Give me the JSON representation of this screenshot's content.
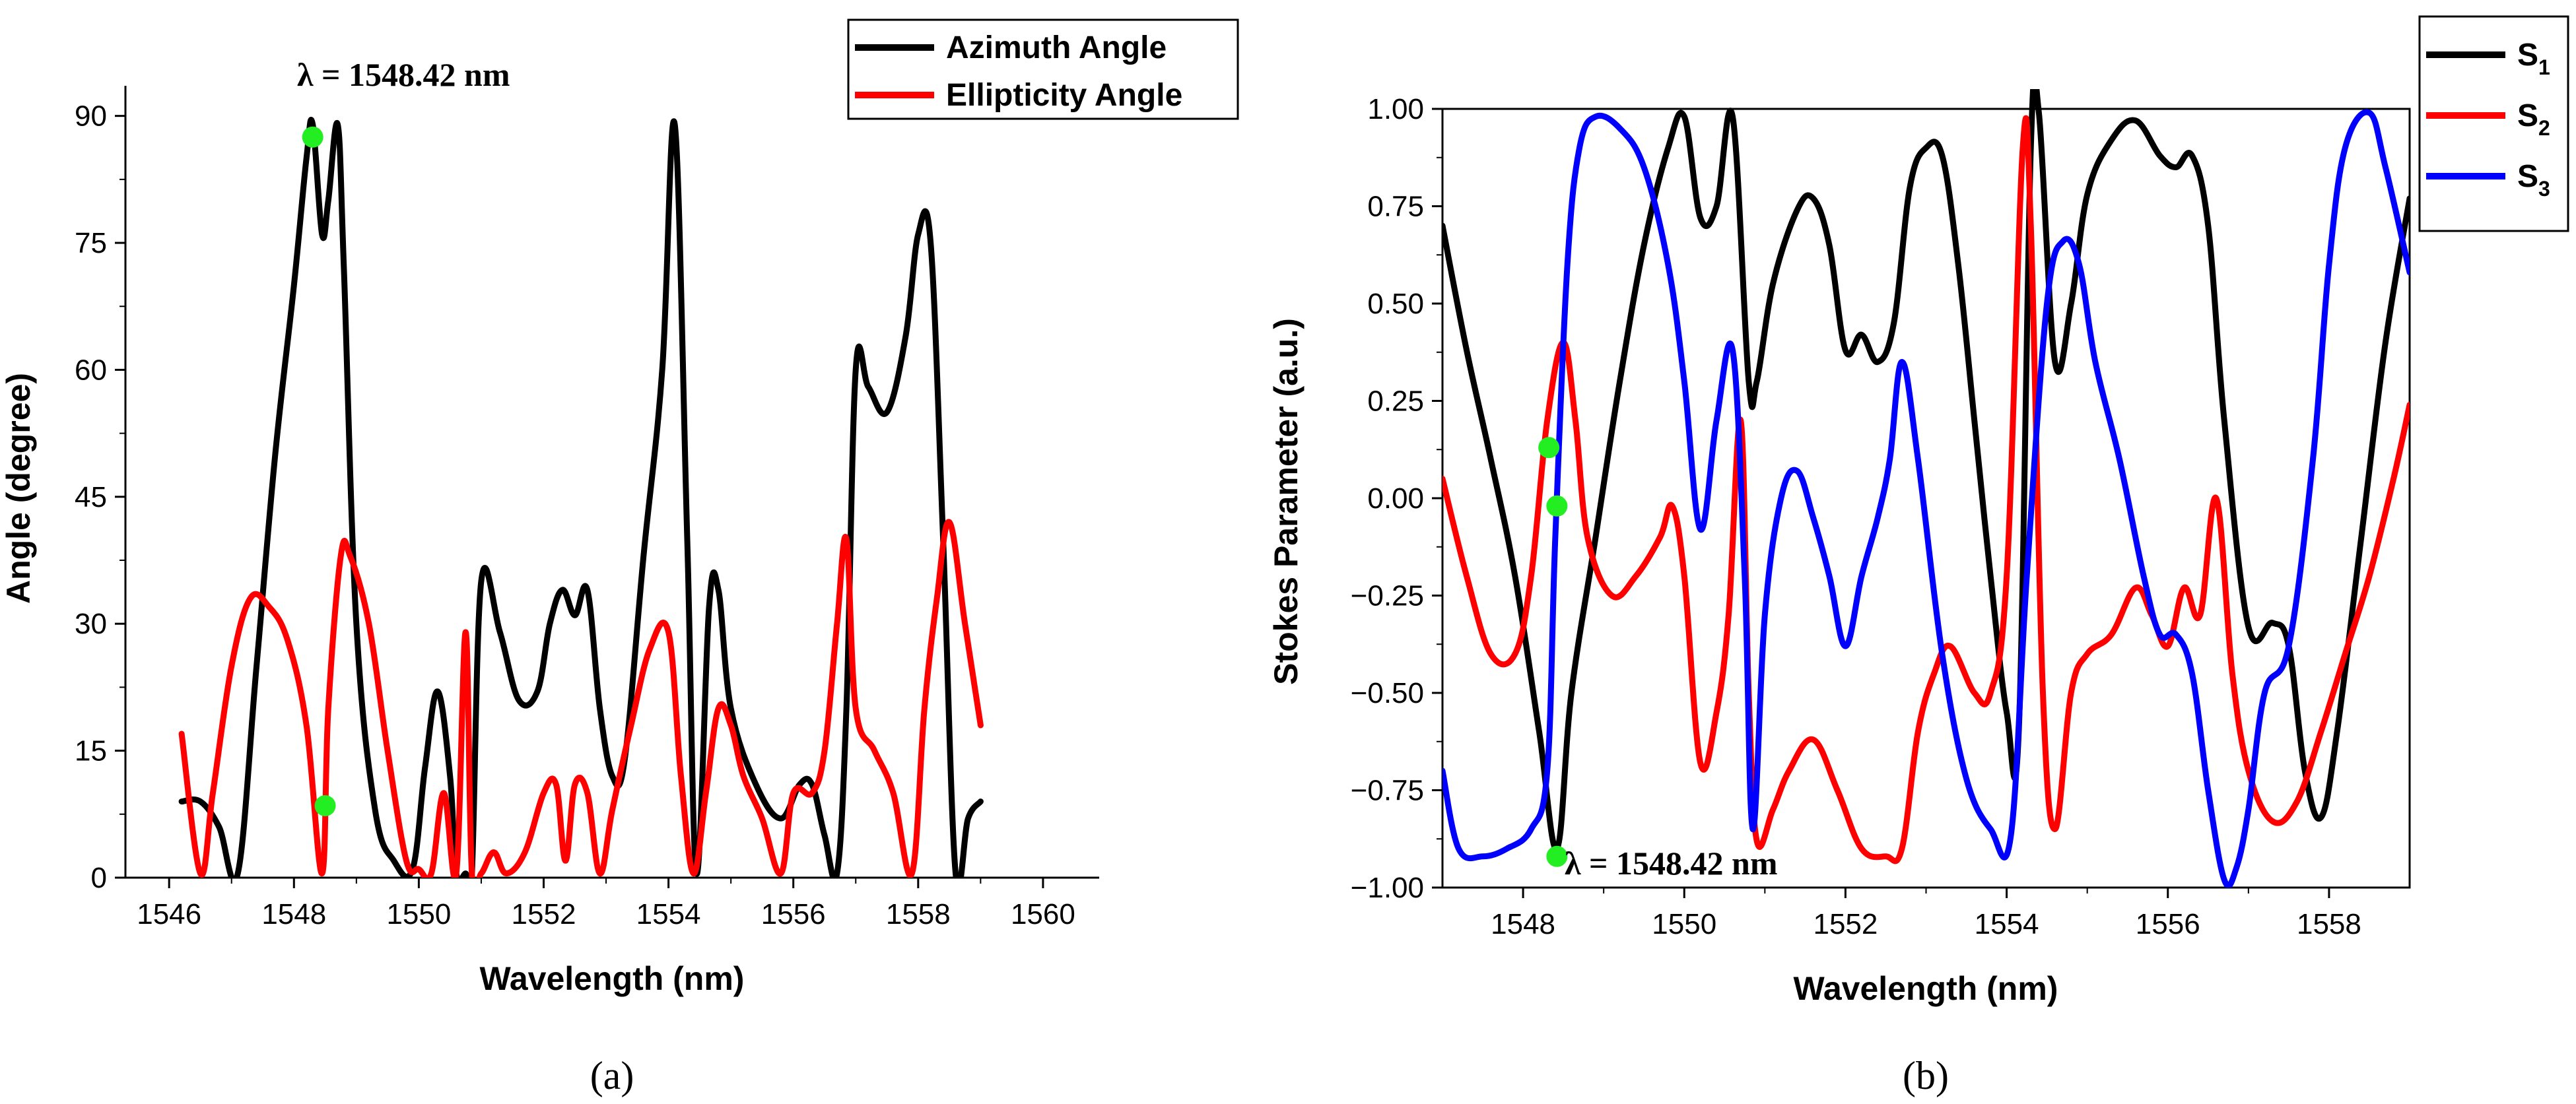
{
  "chart_data": [
    {
      "type": "line",
      "panel_label": "(a)",
      "title": "",
      "xlabel": "Wavelength (nm)",
      "ylabel": "Angle (degree)",
      "xlim": [
        1545.3,
        1560.9
      ],
      "ylim": [
        0,
        92
      ],
      "xticks": [
        1546,
        1548,
        1550,
        1552,
        1554,
        1556,
        1558,
        1560
      ],
      "yticks": [
        0,
        15,
        30,
        45,
        60,
        75,
        90
      ],
      "ytick_labels": [
        "0",
        "15",
        "30",
        "45",
        "60",
        "75",
        "90"
      ],
      "legend_position": "top-right",
      "annotation": {
        "text": "λ = 1548.42 nm",
        "x": 1548.42,
        "y": 90
      },
      "markers": [
        {
          "x": 1548.3,
          "y": 87.5
        },
        {
          "x": 1548.5,
          "y": 8.5
        }
      ],
      "series": [
        {
          "name": "Azimuth Angle",
          "color": "#000000",
          "x": [
            1546.2,
            1546.5,
            1546.8,
            1547.1,
            1547.4,
            1547.7,
            1548.0,
            1548.2,
            1548.3,
            1548.45,
            1548.55,
            1548.7,
            1548.8,
            1549.0,
            1549.3,
            1549.6,
            1549.9,
            1550.1,
            1550.3,
            1550.5,
            1550.6,
            1550.75,
            1550.85,
            1551.0,
            1551.3,
            1551.6,
            1551.9,
            1552.1,
            1552.3,
            1552.5,
            1552.7,
            1552.9,
            1553.1,
            1553.3,
            1553.6,
            1553.9,
            1554.1,
            1554.3,
            1554.45,
            1554.65,
            1554.8,
            1555.0,
            1555.4,
            1555.8,
            1556.1,
            1556.3,
            1556.5,
            1556.7,
            1556.85,
            1557.0,
            1557.2,
            1557.5,
            1557.8,
            1558.0,
            1558.2,
            1558.4,
            1558.6,
            1558.8,
            1559.0
          ],
          "y": [
            9,
            9,
            6,
            0.5,
            25,
            50,
            70,
            85,
            89,
            76,
            80,
            89,
            72,
            30,
            8,
            2,
            1,
            13,
            22,
            12,
            0.5,
            0.5,
            0.5,
            35,
            29,
            21,
            22,
            30,
            34,
            31,
            34,
            20,
            12,
            14,
            38,
            60,
            89,
            40,
            0.5,
            32,
            34,
            20,
            11,
            7,
            11,
            11,
            5,
            0.5,
            20,
            60,
            58,
            55,
            64,
            76,
            75,
            40,
            0.5,
            7,
            9
          ]
        },
        {
          "name": "Ellipticity Angle",
          "color": "#ff0000",
          "x": [
            1546.2,
            1546.5,
            1546.7,
            1547.0,
            1547.3,
            1547.6,
            1547.9,
            1548.2,
            1548.45,
            1548.55,
            1548.75,
            1548.9,
            1549.2,
            1549.5,
            1549.8,
            1550.0,
            1550.2,
            1550.4,
            1550.6,
            1550.75,
            1550.85,
            1551.0,
            1551.2,
            1551.4,
            1551.7,
            1552.0,
            1552.2,
            1552.35,
            1552.5,
            1552.7,
            1552.9,
            1553.1,
            1553.4,
            1553.7,
            1554.0,
            1554.2,
            1554.4,
            1554.6,
            1554.8,
            1555.0,
            1555.2,
            1555.5,
            1555.8,
            1556.0,
            1556.3,
            1556.5,
            1556.7,
            1556.85,
            1557.0,
            1557.3,
            1557.6,
            1557.9,
            1558.1,
            1558.3,
            1558.5,
            1558.75,
            1559.0
          ],
          "y": [
            17,
            0.5,
            10,
            25,
            33,
            32,
            28,
            18,
            0.5,
            20,
            38,
            38,
            30,
            15,
            2,
            1,
            0.5,
            10,
            0.5,
            29,
            0.5,
            0.5,
            3,
            0.5,
            3,
            10,
            11,
            2,
            11,
            10,
            0.5,
            8,
            18,
            27,
            29,
            12,
            0.5,
            10,
            20,
            18,
            12,
            7,
            0.5,
            10,
            10,
            15,
            30,
            40,
            20,
            15,
            10,
            0.5,
            20,
            33,
            42,
            30,
            18
          ]
        }
      ]
    },
    {
      "type": "line",
      "panel_label": "(b)",
      "title": "",
      "xlabel": "Wavelength (nm)",
      "ylabel": "Stokes Parameter (a.u.)",
      "xlim": [
        1547.0,
        1559.0
      ],
      "ylim": [
        -1.0,
        1.0
      ],
      "xticks": [
        1548,
        1550,
        1552,
        1554,
        1556,
        1558
      ],
      "yticks": [
        -1.0,
        -0.75,
        -0.5,
        -0.25,
        0.0,
        0.25,
        0.5,
        0.75,
        1.0
      ],
      "ytick_labels": [
        "−1.00",
        "−0.75",
        "−0.50",
        "−0.25",
        "0.00",
        "0.25",
        "0.50",
        "0.75",
        "1.00"
      ],
      "legend_position": "top-right",
      "annotation": {
        "text": "λ = 1548.42 nm",
        "x": 1548.42,
        "y": -0.92
      },
      "markers": [
        {
          "x": 1548.32,
          "y": 0.13
        },
        {
          "x": 1548.42,
          "y": -0.02
        },
        {
          "x": 1548.42,
          "y": -0.92
        }
      ],
      "series": [
        {
          "name": "S1",
          "color": "#000000",
          "x": [
            1547.0,
            1547.3,
            1547.6,
            1547.9,
            1548.2,
            1548.42,
            1548.6,
            1548.9,
            1549.2,
            1549.5,
            1549.8,
            1550.0,
            1550.2,
            1550.4,
            1550.6,
            1550.8,
            1550.9,
            1551.1,
            1551.4,
            1551.6,
            1551.8,
            1552.0,
            1552.2,
            1552.4,
            1552.6,
            1552.8,
            1553.0,
            1553.2,
            1553.4,
            1553.6,
            1553.8,
            1554.0,
            1554.15,
            1554.3,
            1554.4,
            1554.6,
            1554.8,
            1555.0,
            1555.3,
            1555.6,
            1555.9,
            1556.1,
            1556.3,
            1556.5,
            1556.7,
            1557.0,
            1557.3,
            1557.5,
            1557.7,
            1557.9,
            1558.1,
            1558.4,
            1558.7,
            1559.0
          ],
          "y": [
            0.7,
            0.38,
            0.1,
            -0.2,
            -0.6,
            -0.9,
            -0.5,
            -0.1,
            0.3,
            0.65,
            0.9,
            0.98,
            0.72,
            0.75,
            0.98,
            0.3,
            0.3,
            0.55,
            0.74,
            0.77,
            0.65,
            0.38,
            0.42,
            0.35,
            0.45,
            0.8,
            0.9,
            0.88,
            0.6,
            0.2,
            -0.2,
            -0.55,
            -0.6,
            0.9,
            0.99,
            0.35,
            0.5,
            0.78,
            0.92,
            0.97,
            0.88,
            0.85,
            0.88,
            0.7,
            0.2,
            -0.33,
            -0.32,
            -0.38,
            -0.7,
            -0.82,
            -0.6,
            -0.1,
            0.4,
            0.77
          ]
        },
        {
          "name": "S2",
          "color": "#ff0000",
          "x": [
            1547.0,
            1547.3,
            1547.6,
            1547.9,
            1548.1,
            1548.3,
            1548.5,
            1548.65,
            1548.8,
            1549.1,
            1549.4,
            1549.7,
            1549.85,
            1550.0,
            1550.2,
            1550.4,
            1550.55,
            1550.7,
            1550.8,
            1550.9,
            1551.1,
            1551.3,
            1551.6,
            1551.9,
            1552.2,
            1552.5,
            1552.7,
            1552.9,
            1553.1,
            1553.3,
            1553.6,
            1553.8,
            1554.0,
            1554.2,
            1554.3,
            1554.45,
            1554.6,
            1554.8,
            1555.0,
            1555.3,
            1555.6,
            1555.8,
            1556.0,
            1556.2,
            1556.4,
            1556.6,
            1556.8,
            1557.0,
            1557.3,
            1557.6,
            1557.9,
            1558.2,
            1558.5,
            1558.8,
            1559.0
          ],
          "y": [
            0.05,
            -0.2,
            -0.4,
            -0.4,
            -0.2,
            0.2,
            0.4,
            0.2,
            -0.1,
            -0.25,
            -0.2,
            -0.1,
            -0.02,
            -0.2,
            -0.68,
            -0.55,
            -0.3,
            0.2,
            -0.5,
            -0.88,
            -0.8,
            -0.7,
            -0.62,
            -0.75,
            -0.9,
            -0.92,
            -0.9,
            -0.6,
            -0.45,
            -0.38,
            -0.5,
            -0.5,
            -0.2,
            0.9,
            0.7,
            -0.5,
            -0.85,
            -0.5,
            -0.4,
            -0.35,
            -0.23,
            -0.3,
            -0.38,
            -0.23,
            -0.3,
            0.0,
            -0.45,
            -0.7,
            -0.83,
            -0.78,
            -0.6,
            -0.4,
            -0.2,
            0.05,
            0.24
          ]
        },
        {
          "name": "S3",
          "color": "#0000ff",
          "x": [
            1547.0,
            1547.2,
            1547.5,
            1547.8,
            1548.1,
            1548.3,
            1548.4,
            1548.55,
            1548.7,
            1548.9,
            1549.2,
            1549.5,
            1549.8,
            1550.0,
            1550.2,
            1550.4,
            1550.6,
            1550.75,
            1550.85,
            1551.0,
            1551.2,
            1551.4,
            1551.6,
            1551.8,
            1552.0,
            1552.2,
            1552.4,
            1552.55,
            1552.7,
            1552.9,
            1553.2,
            1553.5,
            1553.8,
            1554.05,
            1554.25,
            1554.5,
            1554.7,
            1554.9,
            1555.1,
            1555.4,
            1555.7,
            1555.9,
            1556.1,
            1556.3,
            1556.5,
            1556.7,
            1556.85,
            1557.0,
            1557.2,
            1557.5,
            1557.8,
            1558.0,
            1558.2,
            1558.5,
            1558.7,
            1559.0
          ],
          "y": [
            -0.7,
            -0.9,
            -0.92,
            -0.9,
            -0.85,
            -0.7,
            -0.1,
            0.6,
            0.9,
            0.98,
            0.95,
            0.85,
            0.6,
            0.3,
            -0.08,
            0.2,
            0.38,
            -0.2,
            -0.85,
            -0.3,
            0.0,
            0.07,
            -0.05,
            -0.2,
            -0.38,
            -0.2,
            -0.05,
            0.1,
            0.35,
            0.1,
            -0.4,
            -0.72,
            -0.85,
            -0.87,
            -0.2,
            0.5,
            0.66,
            0.6,
            0.35,
            0.1,
            -0.2,
            -0.35,
            -0.35,
            -0.45,
            -0.75,
            -0.98,
            -0.95,
            -0.8,
            -0.5,
            -0.38,
            0.1,
            0.6,
            0.9,
            0.99,
            0.85,
            0.58
          ]
        }
      ]
    }
  ]
}
